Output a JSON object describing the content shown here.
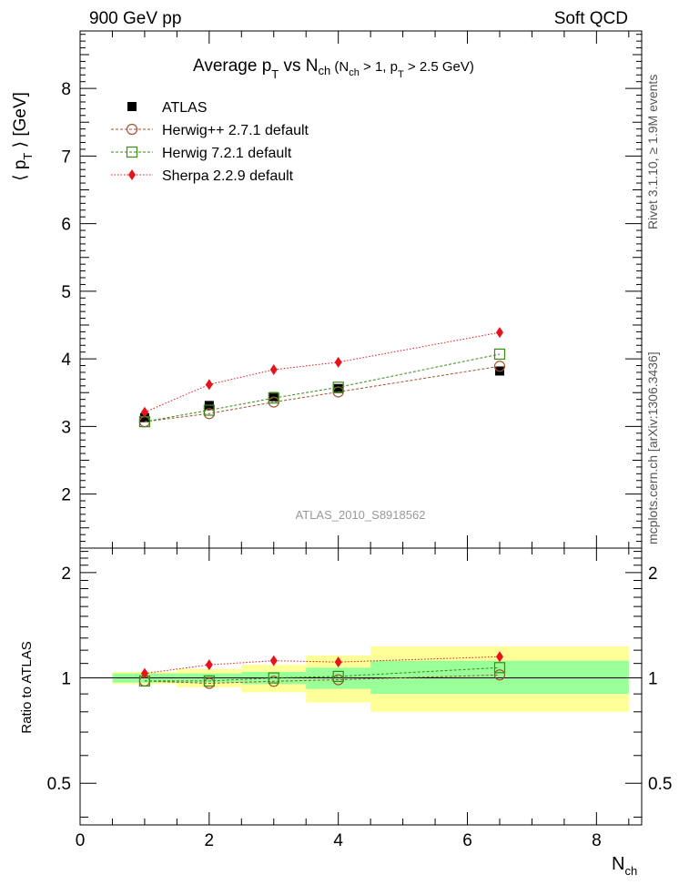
{
  "header": {
    "left": "900 GeV pp",
    "right": "Soft QCD"
  },
  "side_labels": {
    "top": "Rivet 3.1.10, ≥ 1.9M events",
    "bottom": "mcplots.cern.ch [arXiv:1306.3436]"
  },
  "watermark": "ATLAS_2010_S8918562",
  "chart_data": [
    {
      "type": "scatter",
      "title": {
        "main": "Average p",
        "sub_t": "T",
        "vs": " vs N",
        "sub_ch": "ch",
        "cond": " (N",
        "cond_ch": "ch",
        "cond_mid": " > 1, p",
        "cond_t": "T",
        "cond_end": " > 2.5 GeV)"
      },
      "ylabel": {
        "pre": "⟨ p",
        "sub": "T",
        "post": " ⟩ [GeV]"
      },
      "ylim": [
        1.2,
        8.85
      ],
      "yticks": [
        2,
        3,
        4,
        5,
        6,
        7,
        8
      ],
      "legend_placement": "top-left",
      "x": [
        1,
        2,
        3,
        4,
        6.5
      ],
      "series": [
        {
          "name": "ATLAS",
          "values": [
            3.13,
            3.31,
            3.44,
            3.56,
            3.82
          ],
          "color": "#000000",
          "marker": "filled-square"
        },
        {
          "name": "Herwig++ 2.7.1 default",
          "values": [
            3.07,
            3.19,
            3.36,
            3.51,
            3.89
          ],
          "color": "#a0522d",
          "marker": "open-circle"
        },
        {
          "name": "Herwig 7.2.1 default",
          "values": [
            3.07,
            3.24,
            3.42,
            3.58,
            4.07
          ],
          "color": "#3a8a1a",
          "marker": "open-square"
        },
        {
          "name": "Sherpa 2.2.9 default",
          "values": [
            3.21,
            3.62,
            3.84,
            3.95,
            4.39
          ],
          "color": "#e8121a",
          "marker": "filled-diamond"
        }
      ]
    },
    {
      "type": "scatter",
      "ylabel": "Ratio to ATLAS",
      "xlabel": {
        "main": "N",
        "sub": "ch"
      },
      "xlim": [
        0,
        8.7
      ],
      "xticks": [
        0,
        2,
        4,
        6,
        8
      ],
      "ylim": [
        0.38,
        2.35
      ],
      "yticks": [
        0.5,
        1,
        2
      ],
      "scale": "log",
      "bins": [
        {
          "lo": 0.5,
          "hi": 1.5,
          "stat": [
            0.97,
            1.03
          ],
          "total": [
            0.96,
            1.04
          ]
        },
        {
          "lo": 1.5,
          "hi": 2.5,
          "stat": [
            0.97,
            1.03
          ],
          "total": [
            0.94,
            1.06
          ]
        },
        {
          "lo": 2.5,
          "hi": 3.5,
          "stat": [
            0.96,
            1.04
          ],
          "total": [
            0.91,
            1.09
          ]
        },
        {
          "lo": 3.5,
          "hi": 4.5,
          "stat": [
            0.93,
            1.07
          ],
          "total": [
            0.85,
            1.16
          ]
        },
        {
          "lo": 4.5,
          "hi": 8.5,
          "stat": [
            0.9,
            1.12
          ],
          "total": [
            0.8,
            1.23
          ]
        }
      ],
      "x": [
        1,
        2,
        3,
        4,
        6.5
      ],
      "series": [
        {
          "name": "Herwig++ 2.7.1 default",
          "values": [
            0.98,
            0.965,
            0.978,
            0.988,
            1.02
          ]
        },
        {
          "name": "Herwig 7.2.1 default",
          "values": [
            0.98,
            0.98,
            1.0,
            1.01,
            1.07
          ]
        },
        {
          "name": "Sherpa 2.2.9 default",
          "values": [
            1.03,
            1.09,
            1.12,
            1.11,
            1.15
          ]
        }
      ]
    }
  ]
}
